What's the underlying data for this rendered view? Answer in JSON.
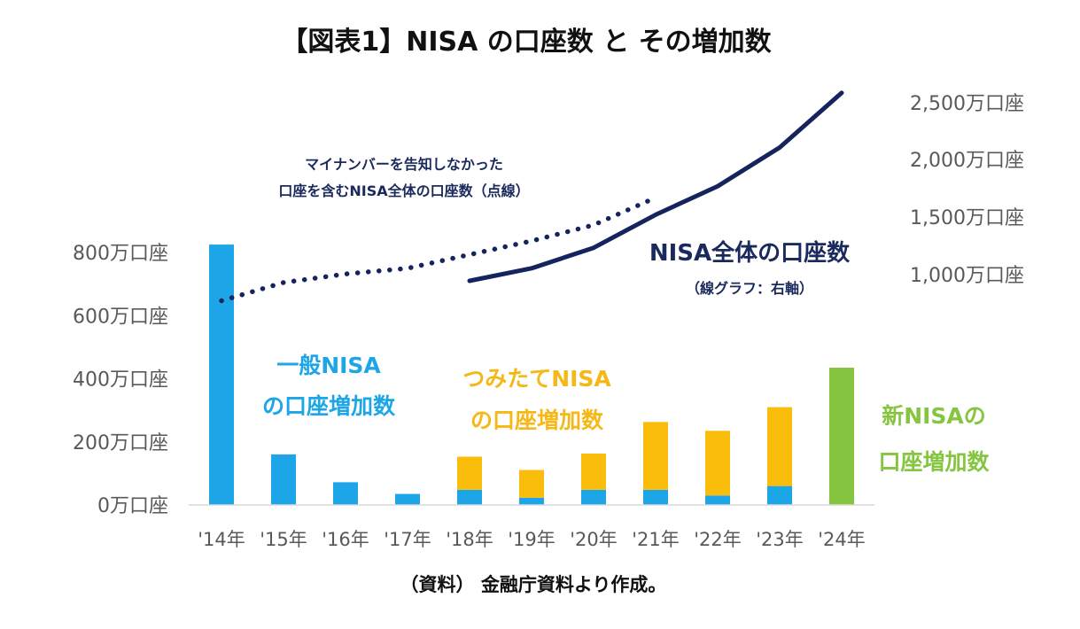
{
  "chart_data": {
    "type": "bar",
    "title": "【図表1】NISA の口座数 と その増加数",
    "source": "（資料） 金融庁資料より作成。",
    "categories": [
      "'14年",
      "'15年",
      "'16年",
      "'17年",
      "'18年",
      "'19年",
      "'20年",
      "'21年",
      "'22年",
      "'23年",
      "'24年"
    ],
    "left_axis": {
      "ticks": [
        "0万口座",
        "200万口座",
        "400万口座",
        "600万口座",
        "800万口座"
      ],
      "ylim": [
        0,
        800
      ]
    },
    "right_axis": {
      "ticks": [
        "1,000万口座",
        "1,500万口座",
        "2,000万口座",
        "2,500万口座"
      ],
      "ylim": [
        700,
        2500
      ]
    },
    "series": [
      {
        "name": "一般NISAの口座増加数",
        "color": "#1ca6e8",
        "values": [
          825,
          160,
          72,
          35,
          48,
          23,
          48,
          48,
          30,
          60,
          null
        ]
      },
      {
        "name": "つみたてNISAの口座増加数",
        "color": "#fbbd0b",
        "values": [
          null,
          null,
          null,
          null,
          105,
          88,
          115,
          215,
          205,
          250,
          null
        ]
      },
      {
        "name": "新NISAの口座増加数",
        "color": "#86c540",
        "values": [
          null,
          null,
          null,
          null,
          null,
          null,
          null,
          null,
          null,
          null,
          435
        ]
      },
      {
        "name": "NISA全体の口座数",
        "type": "line",
        "axis": "right",
        "color": "#15245c",
        "values": [
          null,
          null,
          null,
          null,
          1000,
          1110,
          1290,
          1580,
          1830,
          2170,
          2650
        ]
      },
      {
        "name": "マイナンバーを告知しなかった口座を含むNISA全体の口座数",
        "type": "line",
        "style": "dotted",
        "axis": "right",
        "color": "#15245c",
        "values": [
          825,
          985,
          1060,
          1110,
          1230,
          1350,
          1490,
          1730,
          null,
          null,
          null
        ]
      }
    ],
    "annotations": {
      "general_line1": "一般NISA",
      "general_line2": "の口座増加数",
      "tsumitate_line1": "つみたてNISA",
      "tsumitate_line2": "の口座増加数",
      "new_line1": "新NISAの",
      "new_line2": "口座増加数",
      "total_label": "NISA全体の口座数",
      "total_sub": "（線グラフ：右軸）",
      "dotted_line1": "マイナンバーを告知しなかった",
      "dotted_line2": "口座を含むNISA全体の口座数（点線）"
    }
  }
}
